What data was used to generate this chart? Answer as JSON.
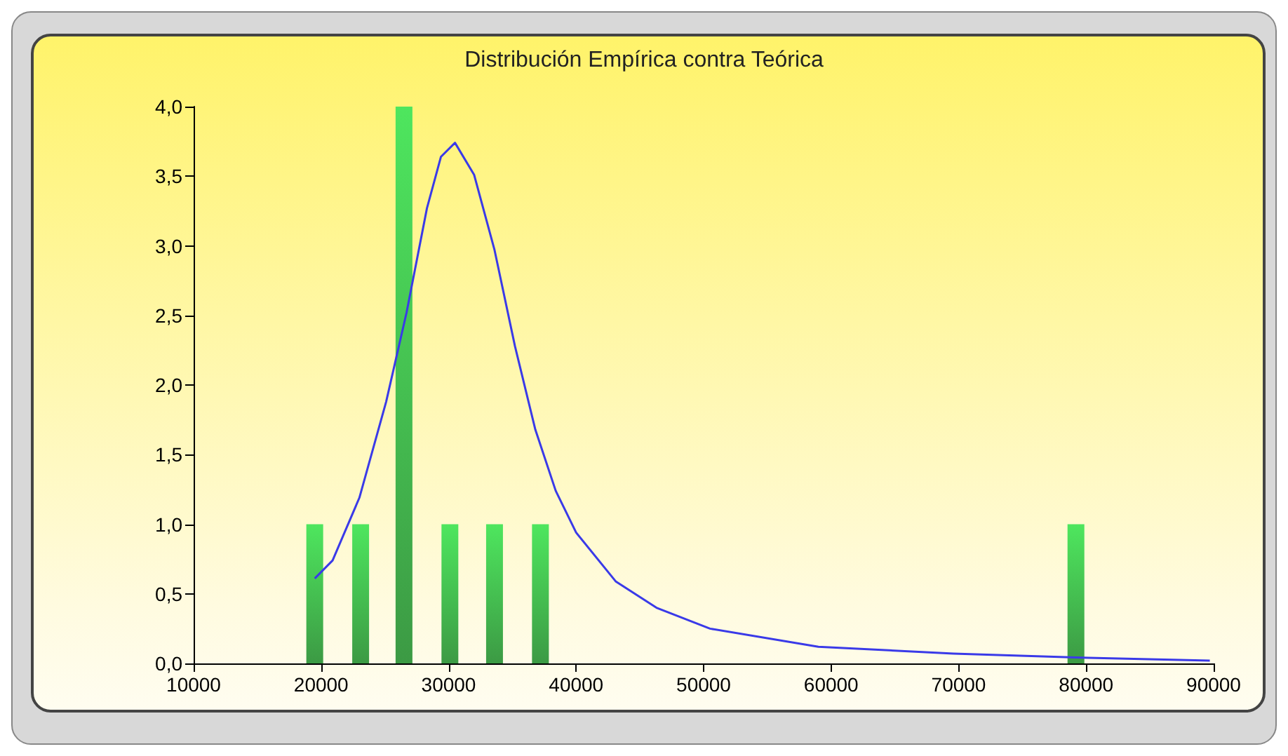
{
  "chart_data": {
    "type": "bar",
    "title": "Distribución Empírica contra Teórica",
    "series": [
      {
        "color": "#4ee65e",
        "x": [
          19500,
          23100,
          26500,
          30100,
          33600,
          37200,
          79200
        ],
        "values": [
          1,
          1,
          4,
          1,
          1,
          1,
          1
        ]
      },
      {
        "type": "line",
        "color": "#3a3ae8",
        "x": [
          19500,
          20900,
          23000,
          25100,
          26700,
          28300,
          29400,
          30500,
          32000,
          33600,
          35200,
          36800,
          38400,
          40000,
          43100,
          46300,
          50500,
          59000,
          69600,
          80200,
          89700
        ],
        "values": [
          0.61,
          0.74,
          1.19,
          1.88,
          2.52,
          3.27,
          3.64,
          3.74,
          3.51,
          2.97,
          2.28,
          1.68,
          1.24,
          0.94,
          0.59,
          0.4,
          0.25,
          0.12,
          0.07,
          0.04,
          0.02
        ]
      }
    ],
    "xlim": [
      10000,
      90000
    ],
    "xticks": [
      10000,
      20000,
      30000,
      40000,
      50000,
      60000,
      70000,
      80000,
      90000
    ],
    "ylim": [
      0,
      4
    ],
    "yticks": [
      {
        "value": 0,
        "label": "0,0"
      },
      {
        "value": 0.5,
        "label": "0,5"
      },
      {
        "value": 1,
        "label": "1,0"
      },
      {
        "value": 1.5,
        "label": "1,5"
      },
      {
        "value": 2,
        "label": "2,0"
      },
      {
        "value": 2.5,
        "label": "2,5"
      },
      {
        "value": 3,
        "label": "3,0"
      },
      {
        "value": 3.5,
        "label": "3,5"
      },
      {
        "value": 4,
        "label": "4,0"
      }
    ],
    "grid": false,
    "marker": "none"
  }
}
